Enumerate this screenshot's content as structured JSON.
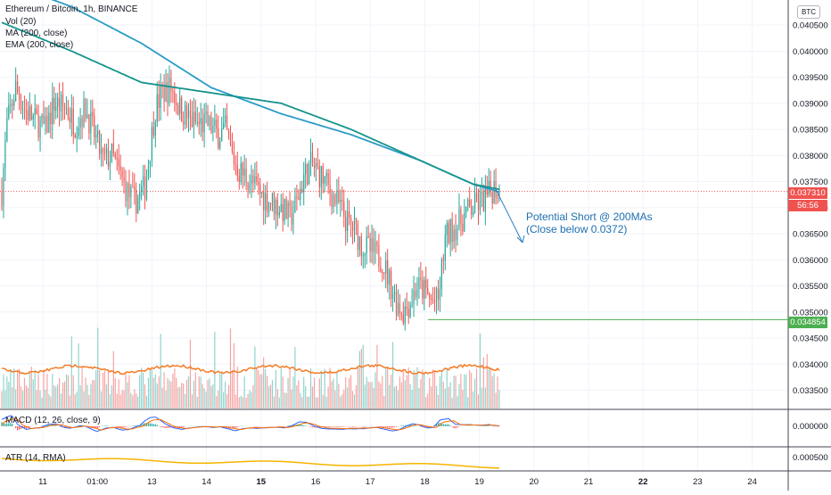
{
  "header": {
    "title": "Ethereum / Bitcoin, 1h, BINANCE",
    "indicators": [
      "Vol (20)",
      "MA (200, close)",
      "EMA (200, close)"
    ],
    "currency_button": "BTC"
  },
  "macd_label": "MACD (12, 26, close, 9)",
  "atr_label": "ATR (14, RMA)",
  "price_tags": {
    "current_price": "0.037310",
    "countdown": "56:56",
    "support": "0.034854"
  },
  "annotation": {
    "line1": "Potential Short @ 200MAs",
    "line2": "(Close below 0.0372)"
  },
  "colors": {
    "up": "#26a69a",
    "down": "#ef5350",
    "vol_up": "#8fd3cc",
    "vol_down": "#f5a3a1",
    "ma": "#2a9bc7",
    "ema": "#14948c",
    "vol_ma": "#f57c24",
    "macd": "#2962ff",
    "signal": "#ff6d00",
    "atr": "#f5b400",
    "support": "#4caf50",
    "arrow": "#2a7fc2"
  },
  "chart_data": {
    "type": "candlestick",
    "symbol": "ETHBTC",
    "interval": "1h",
    "price_axis": {
      "ticks": [
        "0.040500",
        "0.040000",
        "0.039500",
        "0.039000",
        "0.038500",
        "0.038000",
        "0.037500",
        "0.037000",
        "0.036500",
        "0.036000",
        "0.035500",
        "0.035000",
        "0.034500",
        "0.034000",
        "0.033500"
      ],
      "ylim": [
        0.03315,
        0.04098
      ]
    },
    "macd_axis": {
      "ticks": [
        "0.000000"
      ]
    },
    "atr_axis": {
      "ticks": [
        "0.000500"
      ]
    },
    "time_axis": {
      "ticks": [
        "11",
        "01:00",
        "13",
        "14",
        "15",
        "16",
        "17",
        "18",
        "19",
        "20",
        "21",
        "22",
        "23",
        "24"
      ],
      "bold_ticks": [
        "15",
        "22"
      ]
    },
    "current_price": 0.03731,
    "support_level": 0.034854,
    "close_keypoints": [
      [
        0,
        0.0373
      ],
      [
        3,
        0.0386
      ],
      [
        8,
        0.0393
      ],
      [
        13,
        0.0389
      ],
      [
        18,
        0.0387
      ],
      [
        25,
        0.0385
      ],
      [
        30,
        0.039
      ],
      [
        37,
        0.0389
      ],
      [
        42,
        0.0386
      ],
      [
        48,
        0.0389
      ],
      [
        53,
        0.0384
      ],
      [
        58,
        0.0379
      ],
      [
        63,
        0.038
      ],
      [
        68,
        0.0376
      ],
      [
        72,
        0.0373
      ],
      [
        76,
        0.0371
      ],
      [
        82,
        0.0374
      ],
      [
        88,
        0.0389
      ],
      [
        92,
        0.0392
      ],
      [
        97,
        0.0393
      ],
      [
        102,
        0.0389
      ],
      [
        107,
        0.0387
      ],
      [
        112,
        0.0386
      ],
      [
        118,
        0.0386
      ],
      [
        124,
        0.0384
      ],
      [
        128,
        0.0385
      ],
      [
        132,
        0.038
      ],
      [
        136,
        0.0377
      ],
      [
        140,
        0.0376
      ],
      [
        145,
        0.0374
      ],
      [
        150,
        0.0372
      ],
      [
        155,
        0.0371
      ],
      [
        160,
        0.037
      ],
      [
        165,
        0.0368
      ],
      [
        169,
        0.0371
      ],
      [
        173,
        0.0376
      ],
      [
        177,
        0.0378
      ],
      [
        181,
        0.0377
      ],
      [
        185,
        0.0375
      ],
      [
        190,
        0.0372
      ],
      [
        194,
        0.037
      ],
      [
        198,
        0.0367
      ],
      [
        202,
        0.0366
      ],
      [
        206,
        0.0363
      ],
      [
        210,
        0.0362
      ],
      [
        214,
        0.0361
      ],
      [
        218,
        0.036
      ],
      [
        222,
        0.0356
      ],
      [
        226,
        0.0352
      ],
      [
        230,
        0.035
      ],
      [
        234,
        0.0352
      ],
      [
        238,
        0.0355
      ],
      [
        242,
        0.0354
      ],
      [
        246,
        0.0352
      ],
      [
        250,
        0.0352
      ],
      [
        252,
        0.0358
      ],
      [
        254,
        0.0364
      ],
      [
        258,
        0.0366
      ],
      [
        262,
        0.0367
      ],
      [
        266,
        0.0369
      ],
      [
        270,
        0.037
      ],
      [
        274,
        0.0371
      ],
      [
        278,
        0.0372
      ],
      [
        282,
        0.0374
      ],
      [
        285,
        0.0373
      ]
    ],
    "ma200_keypoints": [
      [
        0,
        0.04135
      ],
      [
        40,
        0.04085
      ],
      [
        80,
        0.04015
      ],
      [
        120,
        0.0393
      ],
      [
        160,
        0.0388
      ],
      [
        200,
        0.0384
      ],
      [
        240,
        0.0379
      ],
      [
        270,
        0.03745
      ],
      [
        285,
        0.0373
      ]
    ],
    "ema200_keypoints": [
      [
        0,
        0.04055
      ],
      [
        40,
        0.04
      ],
      [
        80,
        0.0394
      ],
      [
        120,
        0.0392
      ],
      [
        160,
        0.039
      ],
      [
        200,
        0.0385
      ],
      [
        240,
        0.0379
      ],
      [
        270,
        0.03745
      ],
      [
        285,
        0.03735
      ]
    ],
    "bars": 286
  }
}
